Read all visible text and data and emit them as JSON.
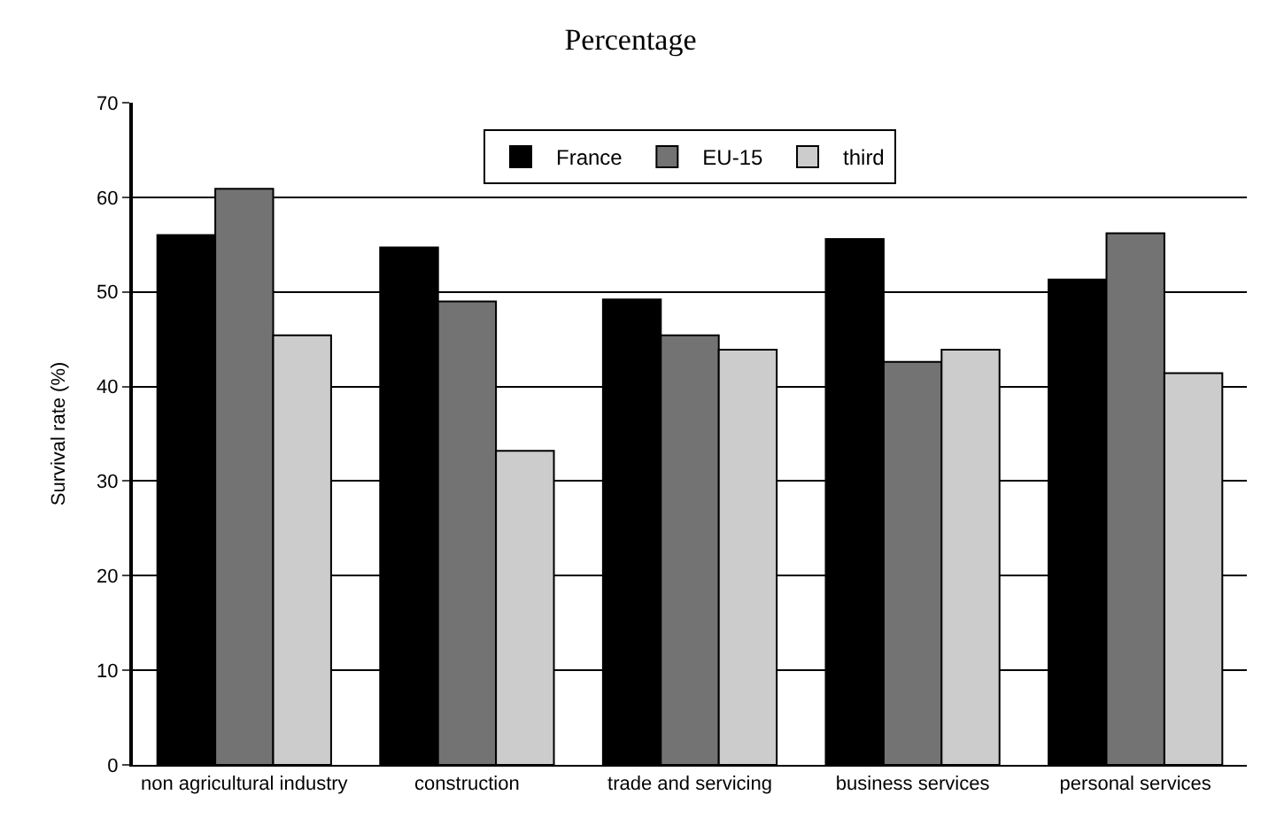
{
  "chart_data": {
    "type": "bar",
    "title": "Percentage",
    "ylabel": "Survival rate (%)",
    "categories": [
      "non agricultural industry",
      "construction",
      "trade and servicing",
      "business services",
      "personal services"
    ],
    "series": [
      {
        "name": "France",
        "color": "#000000",
        "values": [
          56.0,
          54.7,
          49.2,
          55.6,
          51.3
        ]
      },
      {
        "name": "EU-15",
        "color": "#737373",
        "values": [
          60.9,
          49.0,
          45.4,
          42.6,
          56.2
        ]
      },
      {
        "name": "third",
        "color": "#cccccc",
        "values": [
          45.4,
          33.2,
          43.9,
          43.9,
          41.4
        ]
      }
    ],
    "ylim": [
      0,
      70
    ],
    "yticks": [
      0,
      10,
      20,
      30,
      40,
      50,
      60,
      70
    ],
    "grid": "y",
    "legend": "top"
  }
}
